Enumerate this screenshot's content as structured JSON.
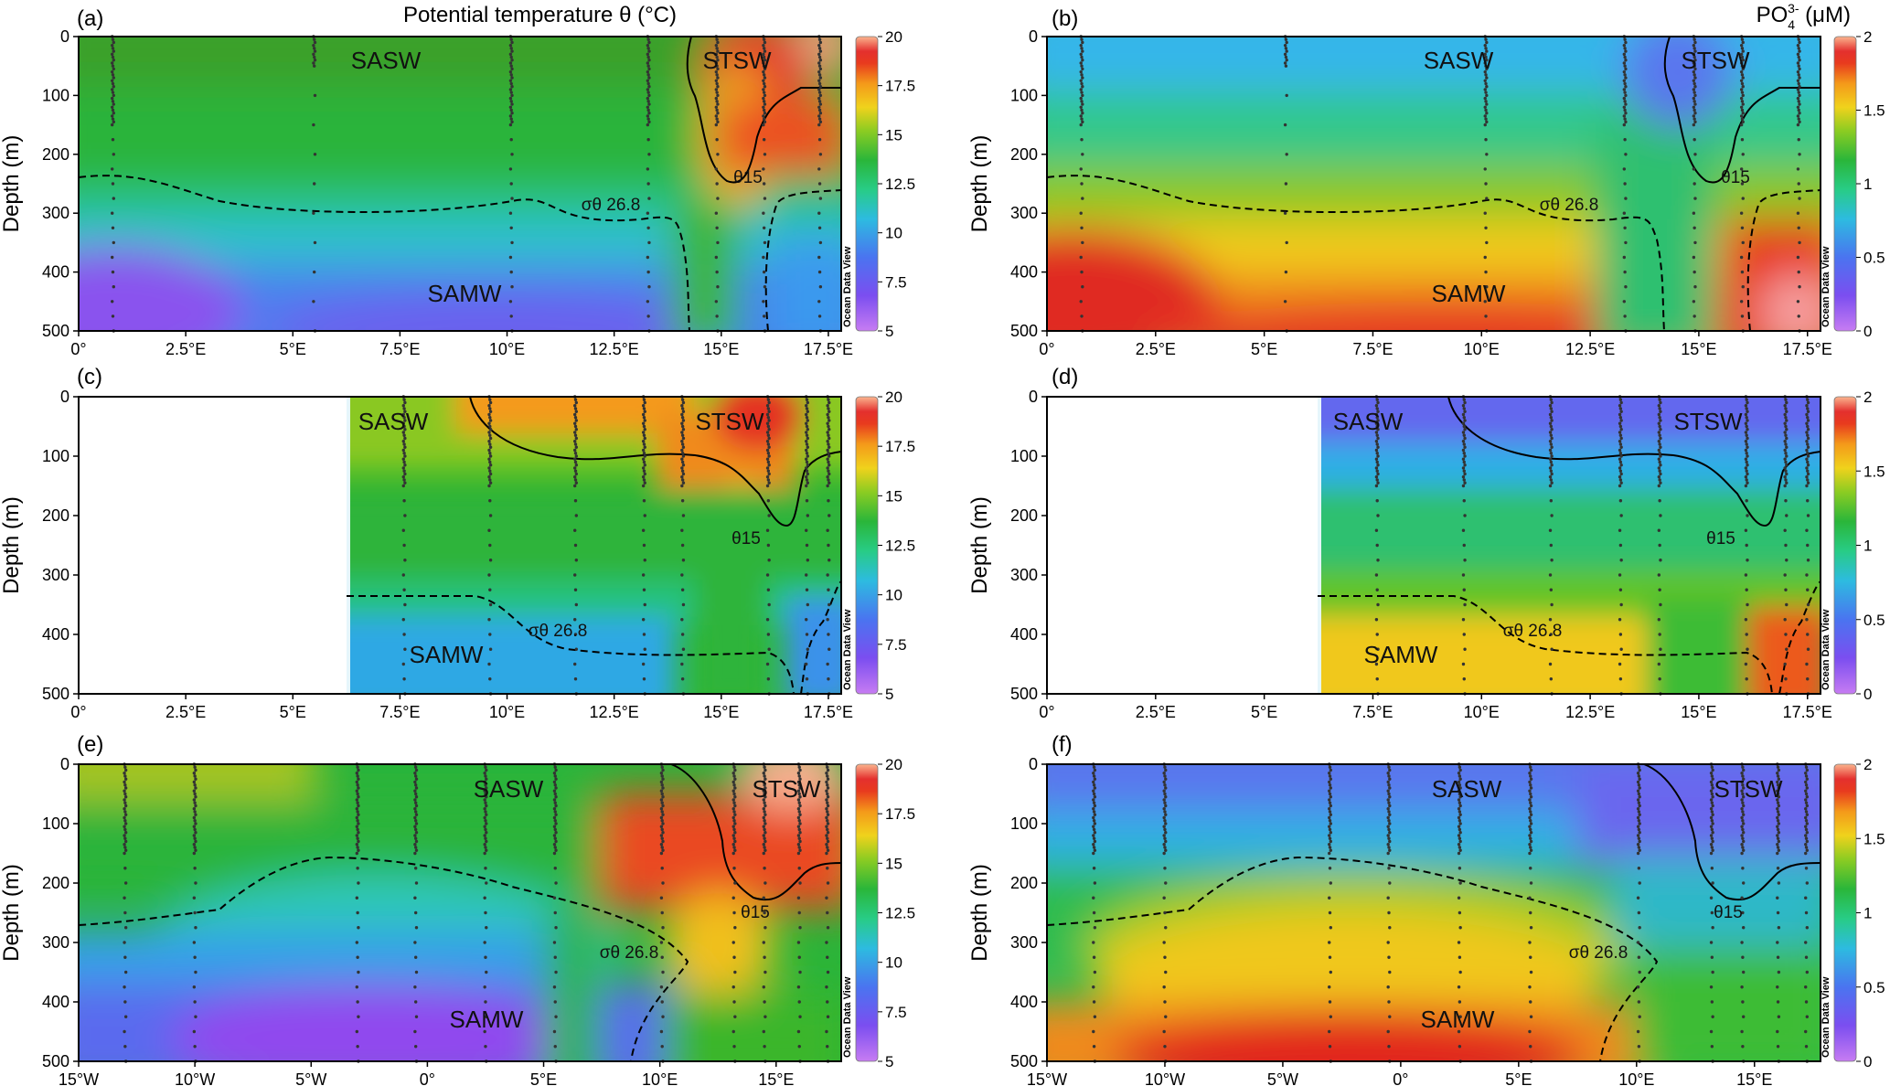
{
  "figure": {
    "title_left": "Potential temperature θ (°C)",
    "title_right_main": "PO",
    "title_right_sub": "4",
    "title_right_sup": "3-",
    "title_right_unit": " (μM)",
    "watermark": "Ocean Data View"
  },
  "chart_data": [
    {
      "id": "a",
      "letter": "(a)",
      "type": "heatmap",
      "variable": "theta",
      "ylabel": "Depth (m)",
      "xlim": [
        0,
        17.8
      ],
      "ylim": [
        0,
        500
      ],
      "xticks": [
        "0°",
        "2.5°E",
        "5°E",
        "7.5°E",
        "10°E",
        "12.5°E",
        "15°E",
        "17.5°E"
      ],
      "yticks": [
        "0",
        "100",
        "200",
        "300",
        "400",
        "500"
      ],
      "colorbar": {
        "ticks": [
          "20",
          "17.5",
          "15",
          "12.5",
          "10",
          "7.5",
          "5"
        ],
        "range": [
          5,
          20
        ]
      },
      "labels": [
        "SASW",
        "STSW",
        "SAMW"
      ],
      "isolines": [
        "θ15",
        "σθ 26.8"
      ],
      "stations": [
        0.8,
        5.5,
        10.1,
        13.3,
        14.9,
        16.0,
        17.3
      ]
    },
    {
      "id": "b",
      "letter": "(b)",
      "type": "heatmap",
      "variable": "po4",
      "ylabel": "Depth (m)",
      "xlim": [
        0,
        17.8
      ],
      "ylim": [
        0,
        500
      ],
      "xticks": [
        "0°",
        "2.5°E",
        "5°E",
        "7.5°E",
        "10°E",
        "12.5°E",
        "15°E",
        "17.5°E"
      ],
      "yticks": [
        "0",
        "100",
        "200",
        "300",
        "400",
        "500"
      ],
      "colorbar": {
        "ticks": [
          "2",
          "1.5",
          "1",
          "0.5",
          "0"
        ],
        "range": [
          0,
          2
        ]
      },
      "labels": [
        "SASW",
        "STSW",
        "SAMW"
      ],
      "isolines": [
        "θ15",
        "σθ 26.8"
      ],
      "stations": [
        0.8,
        5.5,
        10.1,
        13.3,
        14.9,
        16.0,
        17.3
      ]
    },
    {
      "id": "c",
      "letter": "(c)",
      "type": "heatmap",
      "variable": "theta",
      "ylabel": "Depth (m)",
      "xlim": [
        0,
        17.8
      ],
      "ylim": [
        0,
        500
      ],
      "xticks": [
        "0°",
        "2.5°E",
        "5°E",
        "7.5°E",
        "10°E",
        "12.5°E",
        "15°E",
        "17.5°E"
      ],
      "yticks": [
        "0",
        "100",
        "200",
        "300",
        "400",
        "500"
      ],
      "colorbar": {
        "ticks": [
          "20",
          "17.5",
          "15",
          "12.5",
          "10",
          "7.5",
          "5"
        ],
        "range": [
          5,
          20
        ]
      },
      "labels": [
        "SASW",
        "STSW",
        "SAMW"
      ],
      "isolines": [
        "θ15",
        "σθ 26.8"
      ],
      "data_start": 6.2,
      "stations": [
        7.6,
        9.6,
        11.6,
        13.2,
        14.1,
        16.1,
        17.0,
        17.5
      ]
    },
    {
      "id": "d",
      "letter": "(d)",
      "type": "heatmap",
      "variable": "po4",
      "ylabel": "Depth (m)",
      "xlim": [
        0,
        17.8
      ],
      "ylim": [
        0,
        500
      ],
      "xticks": [
        "0°",
        "2.5°E",
        "5°E",
        "7.5°E",
        "10°E",
        "12.5°E",
        "15°E",
        "17.5°E"
      ],
      "yticks": [
        "0",
        "100",
        "200",
        "300",
        "400",
        "500"
      ],
      "colorbar": {
        "ticks": [
          "2",
          "1.5",
          "1",
          "0.5",
          "0"
        ],
        "range": [
          0,
          2
        ]
      },
      "labels": [
        "SASW",
        "STSW",
        "SAMW"
      ],
      "isolines": [
        "θ15",
        "σθ 26.8"
      ],
      "data_start": 6.2,
      "stations": [
        7.6,
        9.6,
        11.6,
        13.2,
        14.1,
        16.1,
        17.0,
        17.5
      ]
    },
    {
      "id": "e",
      "letter": "(e)",
      "type": "heatmap",
      "variable": "theta",
      "ylabel": "Depth (m)",
      "xlim": [
        -15,
        17.8
      ],
      "ylim": [
        0,
        500
      ],
      "xticks": [
        "15°W",
        "10°W",
        "5°W",
        "0°",
        "5°E",
        "10°E",
        "15°E"
      ],
      "yticks": [
        "0",
        "100",
        "200",
        "300",
        "400",
        "500"
      ],
      "colorbar": {
        "ticks": [
          "20",
          "17.5",
          "15",
          "12.5",
          "10",
          "7.5",
          "5"
        ],
        "range": [
          5,
          20
        ]
      },
      "labels": [
        "SASW",
        "STSW",
        "SAMW"
      ],
      "isolines": [
        "θ15",
        "σθ 26.8"
      ],
      "stations": [
        -13,
        -10,
        -3,
        -0.5,
        2.5,
        5.5,
        10.1,
        13.2,
        14.5,
        16.0,
        17.2
      ]
    },
    {
      "id": "f",
      "letter": "(f)",
      "type": "heatmap",
      "variable": "po4",
      "ylabel": "Depth (m)",
      "xlim": [
        -15,
        17.8
      ],
      "ylim": [
        0,
        500
      ],
      "xticks": [
        "15°W",
        "10°W",
        "5°W",
        "0°",
        "5°E",
        "10°E",
        "15°E"
      ],
      "yticks": [
        "0",
        "100",
        "200",
        "300",
        "400",
        "500"
      ],
      "colorbar": {
        "ticks": [
          "2",
          "1.5",
          "1",
          "0.5",
          "0"
        ],
        "range": [
          0,
          2
        ]
      },
      "labels": [
        "SASW",
        "STSW",
        "SAMW"
      ],
      "isolines": [
        "θ15",
        "σθ 26.8"
      ],
      "stations": [
        -13,
        -10,
        -3,
        -0.5,
        2.5,
        5.5,
        10.1,
        13.2,
        14.5,
        16.0,
        17.2
      ]
    }
  ]
}
